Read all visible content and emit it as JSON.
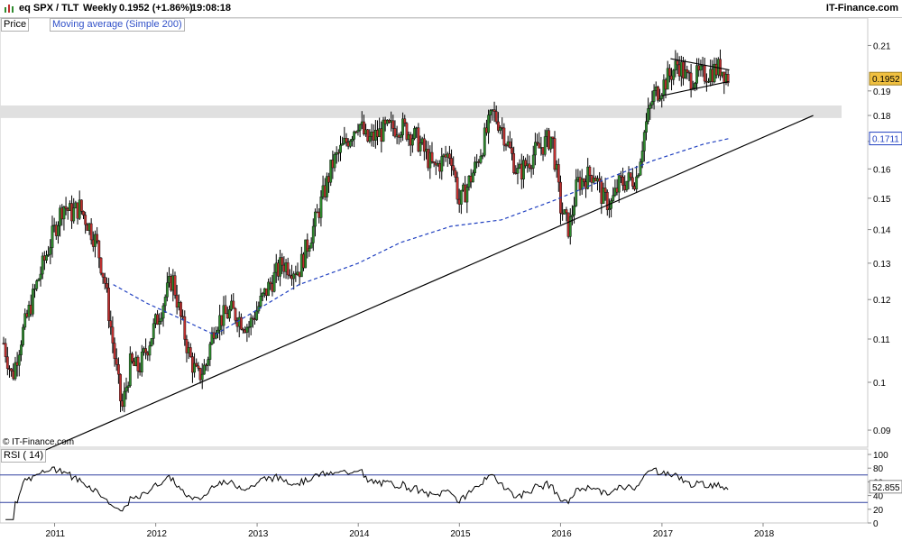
{
  "header": {
    "symbol": "eq SPX  / TLT",
    "period": "Weekly",
    "last": "0.1952 (+1.86%)",
    "time": "19:08:18",
    "brand": "IT-Finance.com",
    "icon": "bar-chart-icon"
  },
  "legend": {
    "price": "Price",
    "ma": "Moving average (Simple 200)",
    "rsi": "RSI ( 14)"
  },
  "watermark": "© IT-Finance.com",
  "colors": {
    "up": "#2e8b2e",
    "down": "#c03030",
    "ma": "#2040c0",
    "band": "#e0e0e0",
    "price_tag": "#f0c040"
  },
  "chart_data": [
    {
      "type": "candlestick",
      "series": [
        {
          "name": "SPX / TLT",
          "last": 0.1952
        },
        {
          "name": "Moving average (Simple 200)",
          "last": 0.1711
        }
      ],
      "x_ticks": [
        "2011",
        "2012",
        "2013",
        "2014",
        "2015",
        "2016",
        "2017",
        "2018"
      ],
      "y_ticks": [
        "0.09",
        "0.1",
        "0.11",
        "0.12",
        "0.13",
        "0.14",
        "0.15",
        "0.16",
        "0.17",
        "0.18",
        "0.19",
        "0.21"
      ],
      "ylim": [
        0.085,
        0.22
      ],
      "y_scale": "log",
      "price_label": "0.1952",
      "ma_label": "0.1711",
      "close_points": [
        [
          "2010-07",
          0.109
        ],
        [
          "2010-08",
          0.101
        ],
        [
          "2010-09",
          0.11
        ],
        [
          "2010-11",
          0.125
        ],
        [
          "2011-01",
          0.14
        ],
        [
          "2011-02",
          0.148
        ],
        [
          "2011-03",
          0.145
        ],
        [
          "2011-04",
          0.147
        ],
        [
          "2011-05",
          0.142
        ],
        [
          "2011-06",
          0.136
        ],
        [
          "2011-07",
          0.125
        ],
        [
          "2011-08",
          0.108
        ],
        [
          "2011-09",
          0.094
        ],
        [
          "2011-10",
          0.104
        ],
        [
          "2011-11",
          0.103
        ],
        [
          "2011-12",
          0.108
        ],
        [
          "2012-01",
          0.114
        ],
        [
          "2012-03",
          0.126
        ],
        [
          "2012-04",
          0.115
        ],
        [
          "2012-05",
          0.106
        ],
        [
          "2012-06",
          0.101
        ],
        [
          "2012-07",
          0.104
        ],
        [
          "2012-08",
          0.114
        ],
        [
          "2012-10",
          0.117
        ],
        [
          "2012-12",
          0.113
        ],
        [
          "2013-02",
          0.122
        ],
        [
          "2013-04",
          0.13
        ],
        [
          "2013-06",
          0.128
        ],
        [
          "2013-08",
          0.143
        ],
        [
          "2013-10",
          0.162
        ],
        [
          "2013-12",
          0.172
        ],
        [
          "2014-01",
          0.178
        ],
        [
          "2014-02",
          0.17
        ],
        [
          "2014-04",
          0.174
        ],
        [
          "2014-06",
          0.176
        ],
        [
          "2014-08",
          0.171
        ],
        [
          "2014-10",
          0.16
        ],
        [
          "2014-12",
          0.166
        ],
        [
          "2015-01",
          0.148
        ],
        [
          "2015-03",
          0.161
        ],
        [
          "2015-05",
          0.181
        ],
        [
          "2015-06",
          0.176
        ],
        [
          "2015-08",
          0.158
        ],
        [
          "2015-10",
          0.166
        ],
        [
          "2015-12",
          0.172
        ],
        [
          "2016-01",
          0.147
        ],
        [
          "2016-02",
          0.14
        ],
        [
          "2016-03",
          0.155
        ],
        [
          "2016-05",
          0.159
        ],
        [
          "2016-06",
          0.15
        ],
        [
          "2016-07",
          0.148
        ],
        [
          "2016-08",
          0.155
        ],
        [
          "2016-10",
          0.157
        ],
        [
          "2016-11",
          0.175
        ],
        [
          "2016-12",
          0.188
        ],
        [
          "2017-01",
          0.192
        ],
        [
          "2017-03",
          0.202
        ],
        [
          "2017-04",
          0.195
        ],
        [
          "2017-06",
          0.197
        ],
        [
          "2017-08",
          0.2
        ],
        [
          "2017-09",
          0.1952
        ]
      ],
      "ma_points": [
        [
          "2011-08",
          0.124
        ],
        [
          "2011-12",
          0.119
        ],
        [
          "2012-04",
          0.115
        ],
        [
          "2012-08",
          0.111
        ],
        [
          "2012-12",
          0.116
        ],
        [
          "2013-06",
          0.124
        ],
        [
          "2014-01",
          0.13
        ],
        [
          "2014-06",
          0.136
        ],
        [
          "2014-12",
          0.141
        ],
        [
          "2015-06",
          0.143
        ],
        [
          "2015-12",
          0.149
        ],
        [
          "2016-06",
          0.156
        ],
        [
          "2016-12",
          0.163
        ],
        [
          "2017-06",
          0.169
        ],
        [
          "2017-09",
          0.1711
        ]
      ],
      "support_band": [
        0.179,
        0.184
      ],
      "trendline": [
        [
          "2010-11",
          0.0855
        ],
        [
          "2018-07",
          0.18
        ]
      ],
      "triangle": {
        "upper": [
          [
            "2017-02",
            0.204
          ],
          [
            "2017-09",
            0.199
          ]
        ],
        "lower": [
          [
            "2017-01",
            0.188
          ],
          [
            "2017-09",
            0.194
          ]
        ]
      }
    },
    {
      "type": "line",
      "series": [
        {
          "name": "RSI ( 14)",
          "last": 52.855
        }
      ],
      "y_ticks": [
        "100",
        "80",
        "60",
        "40",
        "20",
        "0"
      ],
      "ylim": [
        0,
        100
      ],
      "levels": [
        70,
        30
      ],
      "value_label": "52.855"
    }
  ]
}
